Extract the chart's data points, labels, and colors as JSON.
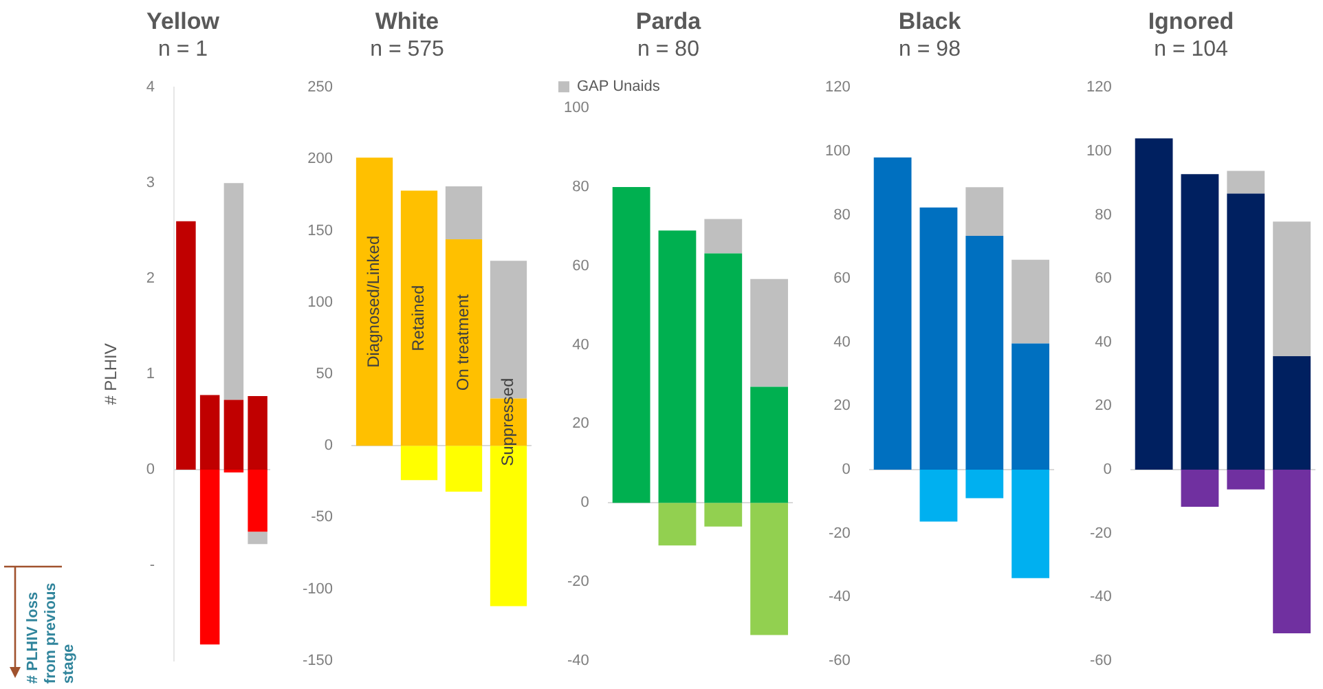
{
  "chart_data": [
    {
      "type": "bar",
      "title": "Yellow",
      "subtitle": "n = 1",
      "ylabel": "# PLHIV",
      "annotations": [
        "# PLHIV loss from previous stage"
      ],
      "categories": [
        null,
        null,
        null,
        null
      ],
      "stacked": true,
      "ylim": [
        -2,
        4
      ],
      "yticks": [
        4,
        3,
        2,
        1,
        0,
        {
          "value": -1,
          "label": "-"
        }
      ],
      "tick_labels": "y",
      "legend": false,
      "series": [
        {
          "color": "#c00000",
          "values": [
            2.6,
            0.78,
            0.73,
            0.77
          ]
        },
        {
          "color": "#ff0000",
          "values": [
            null,
            -1.83,
            -0.03,
            -0.65
          ]
        },
        {
          "color": "#bfbfbf",
          "values": [
            null,
            null,
            2.27,
            -0.13
          ]
        }
      ]
    },
    {
      "type": "bar",
      "title": "White",
      "subtitle": "n = 575",
      "categories": [
        "Diagnosed/Linked",
        "Retained",
        "On treatment",
        "Suppressed"
      ],
      "stacked": true,
      "ylim": [
        -150,
        250
      ],
      "yticks": [
        250,
        200,
        150,
        100,
        50,
        0,
        -50,
        -100,
        -150
      ],
      "legend": false,
      "series": [
        {
          "color": "#ffc000",
          "values": [
            201,
            178,
            144,
            33
          ]
        },
        {
          "color": "#ffff00",
          "values": [
            null,
            -24,
            -32,
            -112
          ]
        },
        {
          "color": "#bfbfbf",
          "values": [
            null,
            null,
            37,
            96
          ]
        }
      ]
    },
    {
      "type": "bar",
      "title": "Parda",
      "subtitle": "n = 80",
      "categories": [
        null,
        null,
        null,
        null
      ],
      "stacked": true,
      "ylim": [
        -40,
        100
      ],
      "yticks": [
        100,
        80,
        60,
        40,
        20,
        0,
        -20,
        -40
      ],
      "tick_labels": "y",
      "legend": "top",
      "series": [
        {
          "color": "#00b050",
          "values": [
            80,
            69,
            63.2,
            29.4
          ]
        },
        {
          "color": "#92d050",
          "values": [
            null,
            -10.8,
            -6,
            -33.5
          ]
        },
        {
          "name": "GAP Unaids",
          "color": "#bfbfbf",
          "values": [
            null,
            null,
            8.7,
            27.3
          ]
        }
      ]
    },
    {
      "type": "bar",
      "title": "Black",
      "subtitle": "n = 98",
      "categories": [
        null,
        null,
        null,
        null
      ],
      "stacked": true,
      "ylim": [
        -60,
        120
      ],
      "yticks": [
        120,
        100,
        80,
        60,
        40,
        20,
        0,
        -20,
        -40,
        -60
      ],
      "tick_labels": "y",
      "legend": false,
      "series": [
        {
          "color": "#0070c0",
          "values": [
            98,
            82.3,
            73.4,
            39.6
          ]
        },
        {
          "color": "#00b0f0",
          "values": [
            null,
            -16.3,
            -9,
            -34.1
          ]
        },
        {
          "color": "#bfbfbf",
          "values": [
            null,
            null,
            15.3,
            26.3
          ]
        }
      ]
    },
    {
      "type": "bar",
      "title": "Ignored",
      "subtitle": "n = 104",
      "categories": [
        null,
        null,
        null,
        null
      ],
      "stacked": true,
      "ylim": [
        -60,
        120
      ],
      "yticks": [
        120,
        100,
        80,
        60,
        40,
        20,
        0,
        -20,
        -40,
        -60
      ],
      "tick_labels": "y",
      "legend": false,
      "series": [
        {
          "color": "#002060",
          "values": [
            104,
            92.8,
            86.7,
            35.6
          ]
        },
        {
          "color": "#7030a0",
          "values": [
            null,
            -11.7,
            -6.2,
            -51.4
          ]
        },
        {
          "color": "#bfbfbf",
          "values": [
            null,
            null,
            7.1,
            42.3
          ]
        }
      ]
    }
  ]
}
